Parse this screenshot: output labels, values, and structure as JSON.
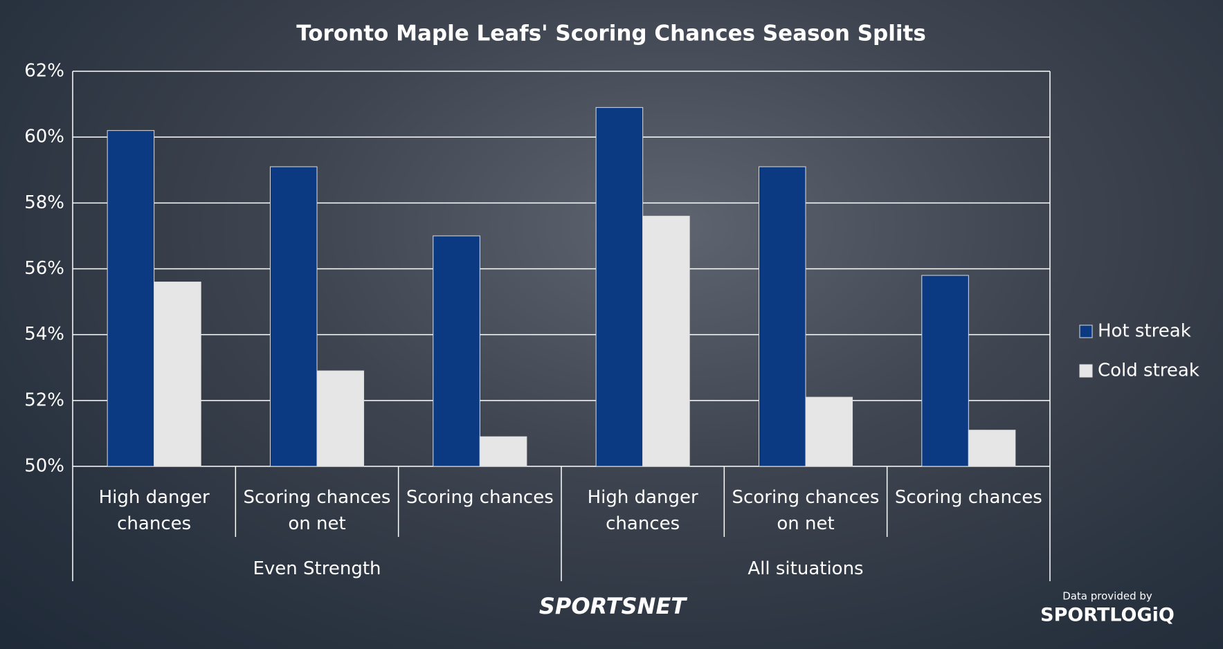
{
  "chart_data": {
    "type": "bar",
    "title": "Toronto Maple Leafs' Scoring Chances Season Splits",
    "groups": [
      {
        "name": "Even Strength",
        "categories": [
          "High danger chances",
          "Scoring chances on net",
          "Scoring chances"
        ]
      },
      {
        "name": "All situations",
        "categories": [
          "High danger chances",
          "Scoring chances on net",
          "Scoring chances"
        ]
      }
    ],
    "series": [
      {
        "name": "Hot streak",
        "color": "#0b3a82",
        "values": [
          60.2,
          59.1,
          57.0,
          60.9,
          59.1,
          55.8
        ]
      },
      {
        "name": "Cold streak",
        "color": "#e6e6e6",
        "values": [
          55.6,
          52.9,
          50.9,
          57.6,
          52.1,
          51.1
        ]
      }
    ],
    "ylim": [
      50,
      62
    ],
    "yticks": [
      {
        "value": 50,
        "label": "50%"
      },
      {
        "value": 52,
        "label": "52%"
      },
      {
        "value": 54,
        "label": "54%"
      },
      {
        "value": 56,
        "label": "56%"
      },
      {
        "value": 58,
        "label": "58%"
      },
      {
        "value": 60,
        "label": "60%"
      },
      {
        "value": 62,
        "label": "62%"
      }
    ],
    "grid": true,
    "legend": "right"
  },
  "branding": {
    "logo": "SPORTSNET",
    "credit": "Data provided by",
    "credit_logo": "SPORTLOGiQ"
  }
}
